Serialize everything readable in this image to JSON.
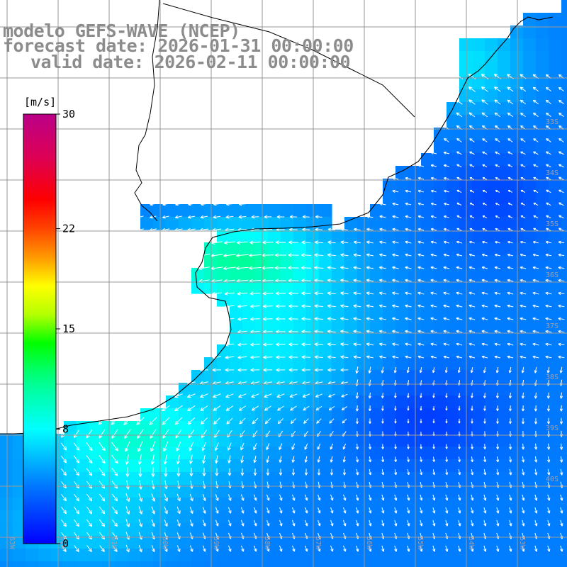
{
  "header": {
    "line1": "modelo GEFS-WAVE (NCEP)",
    "line2": "forecast date: 2026-01-31 00:00:00",
    "line3": "valid date: 2026-02-11 00:00:00"
  },
  "colorbar": {
    "unit": "[m/s]",
    "ticks": [
      {
        "value": 30,
        "label": "30"
      },
      {
        "value": 22,
        "label": "22"
      },
      {
        "value": 15,
        "label": "15"
      },
      {
        "value": 8,
        "label": "8"
      },
      {
        "value": 0,
        "label": "0"
      }
    ],
    "min": 0,
    "max": 30,
    "colors": [
      "#0000ff",
      "#0099ff",
      "#00ffff",
      "#00ff66",
      "#00ff00",
      "#aaff00",
      "#ffff00",
      "#ff9900",
      "#ff3300",
      "#ff0000",
      "#cc0066",
      "#bb0077"
    ]
  },
  "lat_labels": [
    "33S",
    "34S",
    "35S",
    "36S",
    "37S",
    "38S",
    "39S",
    "40S"
  ],
  "lon_labels": [
    "63W",
    "62W",
    "61W",
    "60W",
    "59W",
    "58W",
    "57W",
    "56W",
    "55W",
    "54W",
    "53W"
  ],
  "colors": {
    "land": "#ffffff",
    "grid": "#999999",
    "coast": "#000000",
    "header_text": "#8c8c8c",
    "tick_text": "#9aa0b4",
    "arrow": "#ffffff"
  }
}
